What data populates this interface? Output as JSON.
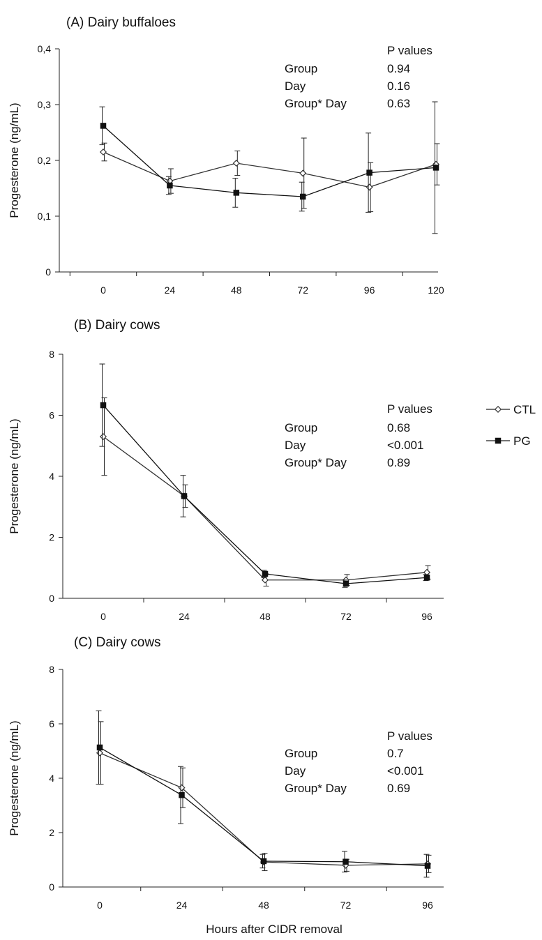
{
  "chart_data": [
    {
      "type": "line",
      "title": "(A) Dairy buffaloes",
      "ylabel": "Progesterone (ng/mL)",
      "xlabel": "",
      "x": [
        0,
        24,
        48,
        72,
        96,
        120
      ],
      "x_tick_labels": [
        "0",
        "24",
        "48",
        "72",
        "96",
        "120"
      ],
      "ylim": [
        0,
        0.4
      ],
      "y_ticks": [
        0,
        0.1,
        0.2,
        0.3,
        0.4
      ],
      "y_tick_labels": [
        "0",
        "0,1",
        "0,2",
        "0,3",
        "0,4"
      ],
      "series": [
        {
          "name": "CTL",
          "marker": "open-diamond",
          "values": [
            0.215,
            0.163,
            0.195,
            0.177,
            0.152,
            0.193
          ],
          "errors": [
            0.016,
            0.022,
            0.022,
            0.063,
            0.044,
            0.037
          ]
        },
        {
          "name": "PG",
          "marker": "filled-square",
          "values": [
            0.262,
            0.155,
            0.142,
            0.135,
            0.178,
            0.187
          ],
          "errors": [
            0.034,
            0.016,
            0.026,
            0.026,
            0.071,
            0.118
          ]
        }
      ],
      "pvalues_header": "P values",
      "pvalues": [
        {
          "label": "Group",
          "value": "0.94"
        },
        {
          "label": "Day",
          "value": "0.16"
        },
        {
          "label": "Group* Day",
          "value": "0.63"
        }
      ]
    },
    {
      "type": "line",
      "title": "(B) Dairy cows",
      "ylabel": "Progesterone (ng/mL)",
      "xlabel": "",
      "x": [
        0,
        24,
        48,
        72,
        96
      ],
      "x_tick_labels": [
        "0",
        "24",
        "48",
        "72",
        "96"
      ],
      "ylim": [
        0,
        8
      ],
      "y_ticks": [
        0,
        2,
        4,
        6,
        8
      ],
      "y_tick_labels": [
        "0",
        "2",
        "4",
        "6",
        "8"
      ],
      "series": [
        {
          "name": "CTL",
          "marker": "open-diamond",
          "values": [
            5.3,
            3.35,
            0.6,
            0.6,
            0.85
          ],
          "errors": [
            1.27,
            0.37,
            0.2,
            0.18,
            0.22
          ]
        },
        {
          "name": "PG",
          "marker": "filled-square",
          "values": [
            6.33,
            3.35,
            0.8,
            0.48,
            0.68
          ],
          "errors": [
            1.35,
            0.68,
            0.12,
            0.12,
            0.1
          ]
        }
      ],
      "pvalues_header": "P values",
      "pvalues": [
        {
          "label": "Group",
          "value": "0.68"
        },
        {
          "label": "Day",
          "value": "<0.001"
        },
        {
          "label": "Group* Day",
          "value": "0.89"
        }
      ]
    },
    {
      "type": "line",
      "title": "(C) Dairy cows",
      "ylabel": "Progesterone (ng/mL)",
      "xlabel": "Hours after CIDR removal",
      "x": [
        0,
        24,
        48,
        72,
        96
      ],
      "x_tick_labels": [
        "0",
        "24",
        "48",
        "72",
        "96"
      ],
      "ylim": [
        0,
        8
      ],
      "y_ticks": [
        0,
        2,
        4,
        6,
        8
      ],
      "y_tick_labels": [
        "0",
        "2",
        "4",
        "6",
        "8"
      ],
      "series": [
        {
          "name": "CTL",
          "marker": "open-diamond",
          "values": [
            4.93,
            3.65,
            0.92,
            0.8,
            0.85
          ],
          "errors": [
            1.15,
            0.73,
            0.32,
            0.22,
            0.32
          ]
        },
        {
          "name": "PG",
          "marker": "filled-square",
          "values": [
            5.13,
            3.38,
            0.95,
            0.93,
            0.78
          ],
          "errors": [
            1.35,
            1.05,
            0.25,
            0.38,
            0.42
          ]
        }
      ],
      "pvalues_header": "P values",
      "pvalues": [
        {
          "label": "Group",
          "value": "0.7"
        },
        {
          "label": "Day",
          "value": "<0.001"
        },
        {
          "label": "Group* Day",
          "value": "0.69"
        }
      ]
    }
  ],
  "legend": {
    "placement": "right",
    "items": [
      {
        "label": "CTL",
        "marker": "open-diamond"
      },
      {
        "label": "PG",
        "marker": "filled-square"
      }
    ]
  }
}
